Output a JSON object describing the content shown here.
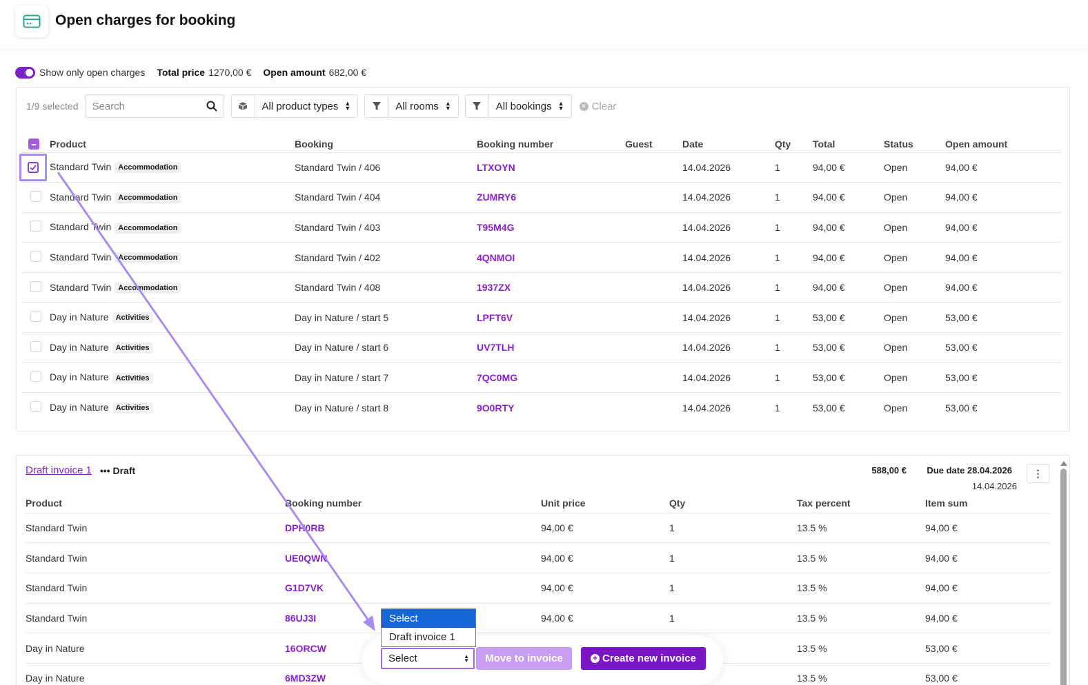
{
  "header": {
    "title": "Open charges for booking",
    "icon": "card-icon"
  },
  "summary": {
    "toggle_label": "Show only open charges",
    "total_price_label": "Total price",
    "total_price_value": "1270,00 €",
    "open_amount_label": "Open amount",
    "open_amount_value": "682,00 €"
  },
  "filters": {
    "selected_count": "1/9 selected",
    "search_placeholder": "Search",
    "product_types": "All product types",
    "rooms": "All rooms",
    "bookings": "All bookings",
    "clear": "Clear"
  },
  "charges": {
    "columns": [
      "Product",
      "Booking",
      "Booking number",
      "Guest",
      "Date",
      "Qty",
      "Total",
      "Status",
      "Open amount"
    ],
    "rows": [
      {
        "product": "Standard Twin",
        "badge": "Accommodation",
        "booking": "Standard Twin / 406",
        "number": "LTXOYN",
        "guest": "",
        "date": "14.04.2026",
        "qty": "1",
        "total": "94,00 €",
        "status": "Open",
        "open": "94,00 €",
        "checked": true
      },
      {
        "product": "Standard Twin",
        "badge": "Accommodation",
        "booking": "Standard Twin / 404",
        "number": "ZUMRY6",
        "guest": "",
        "date": "14.04.2026",
        "qty": "1",
        "total": "94,00 €",
        "status": "Open",
        "open": "94,00 €",
        "checked": false
      },
      {
        "product": "Standard Twin",
        "badge": "Accommodation",
        "booking": "Standard Twin / 403",
        "number": "T95M4G",
        "guest": "",
        "date": "14.04.2026",
        "qty": "1",
        "total": "94,00 €",
        "status": "Open",
        "open": "94,00 €",
        "checked": false
      },
      {
        "product": "Standard Twin",
        "badge": "Accommodation",
        "booking": "Standard Twin / 402",
        "number": "4QNMOI",
        "guest": "",
        "date": "14.04.2026",
        "qty": "1",
        "total": "94,00 €",
        "status": "Open",
        "open": "94,00 €",
        "checked": false
      },
      {
        "product": "Standard Twin",
        "badge": "Accommodation",
        "booking": "Standard Twin / 408",
        "number": "1937ZX",
        "guest": "",
        "date": "14.04.2026",
        "qty": "1",
        "total": "94,00 €",
        "status": "Open",
        "open": "94,00 €",
        "checked": false
      },
      {
        "product": "Day in Nature",
        "badge": "Activities",
        "booking": "Day in Nature / start 5",
        "number": "LPFT6V",
        "guest": "",
        "date": "14.04.2026",
        "qty": "1",
        "total": "53,00 €",
        "status": "Open",
        "open": "53,00 €",
        "checked": false
      },
      {
        "product": "Day in Nature",
        "badge": "Activities",
        "booking": "Day in Nature / start 6",
        "number": "UV7TLH",
        "guest": "",
        "date": "14.04.2026",
        "qty": "1",
        "total": "53,00 €",
        "status": "Open",
        "open": "53,00 €",
        "checked": false
      },
      {
        "product": "Day in Nature",
        "badge": "Activities",
        "booking": "Day in Nature / start 7",
        "number": "7QC0MG",
        "guest": "",
        "date": "14.04.2026",
        "qty": "1",
        "total": "53,00 €",
        "status": "Open",
        "open": "53,00 €",
        "checked": false
      },
      {
        "product": "Day in Nature",
        "badge": "Activities",
        "booking": "Day in Nature / start 8",
        "number": "9O0RTY",
        "guest": "",
        "date": "14.04.2026",
        "qty": "1",
        "total": "53,00 €",
        "status": "Open",
        "open": "53,00 €",
        "checked": false
      }
    ]
  },
  "invoice": {
    "title": "Draft invoice 1",
    "status": "Draft",
    "sum": "588,00 €",
    "due_date": "Due date 28.04.2026",
    "date": "14.04.2026",
    "columns": [
      "Product",
      "Booking number",
      "Unit price",
      "Qty",
      "Tax percent",
      "Item sum"
    ],
    "rows": [
      {
        "product": "Standard Twin",
        "number": "DPH0RB",
        "unit": "94,00 €",
        "qty": "1",
        "tax": "13.5 %",
        "sum": "94,00 €"
      },
      {
        "product": "Standard Twin",
        "number": "UE0QWN",
        "unit": "94,00 €",
        "qty": "1",
        "tax": "13.5 %",
        "sum": "94,00 €"
      },
      {
        "product": "Standard Twin",
        "number": "G1D7VK",
        "unit": "94,00 €",
        "qty": "1",
        "tax": "13.5 %",
        "sum": "94,00 €"
      },
      {
        "product": "Standard Twin",
        "number": "86UJ3I",
        "unit": "94,00 €",
        "qty": "1",
        "tax": "13.5 %",
        "sum": "94,00 €"
      },
      {
        "product": "Day in Nature",
        "number": "16ORCW",
        "unit": "",
        "qty": "",
        "tax": "13.5 %",
        "sum": "53,00 €"
      },
      {
        "product": "Day in Nature",
        "number": "6MD3ZW",
        "unit": "",
        "qty": "",
        "tax": "13.5 %",
        "sum": "53,00 €"
      }
    ]
  },
  "actions": {
    "dropdown_options": [
      "Select",
      "Draft invoice 1"
    ],
    "select_value": "Select",
    "move_button": "Move to invoice",
    "create_button": "Create new invoice"
  },
  "colors": {
    "accent": "#7b16c6",
    "link": "#8a1fcf",
    "highlight": "#1565d8",
    "annotation": "#a98cf2"
  }
}
